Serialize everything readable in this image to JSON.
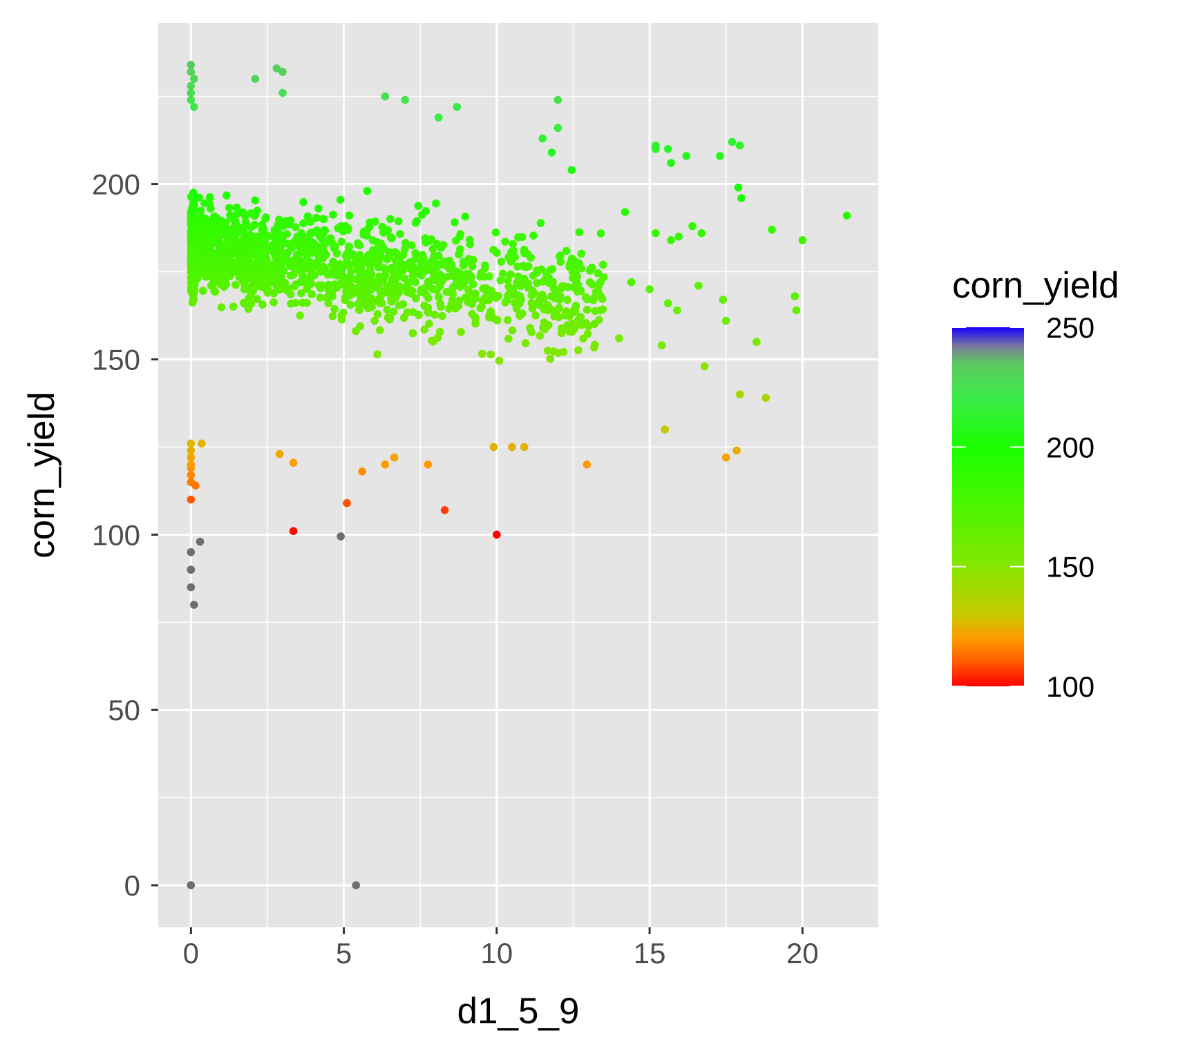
{
  "chart_data": {
    "type": "scatter",
    "title": "",
    "xlabel": "d1_5_9",
    "ylabel": "corn_yield",
    "xlim": [
      -1.07,
      22.5
    ],
    "ylim": [
      -12,
      246
    ],
    "x_ticks": [
      0,
      5,
      10,
      15,
      20
    ],
    "x_minor": [
      2.5,
      7.5,
      12.5,
      17.5,
      22.5
    ],
    "y_ticks": [
      0,
      50,
      100,
      150,
      200
    ],
    "y_minor": [
      25,
      75,
      125,
      175,
      225
    ],
    "grid": true,
    "panel_background": "#e5e5e5",
    "grid_color": "#ffffff",
    "na_color": "#6e6e6e",
    "legend": {
      "title": "corn_yield",
      "position": "right",
      "range": [
        100,
        250
      ],
      "breaks": [
        100,
        150,
        200,
        250
      ],
      "gradient": [
        {
          "value": 100,
          "color": "#ff0000"
        },
        {
          "value": 110,
          "color": "#ff5a00"
        },
        {
          "value": 120,
          "color": "#ff9a00"
        },
        {
          "value": 130,
          "color": "#c8c800"
        },
        {
          "value": 150,
          "color": "#85e600"
        },
        {
          "value": 175,
          "color": "#4cf500"
        },
        {
          "value": 200,
          "color": "#1aff00"
        },
        {
          "value": 220,
          "color": "#3cec48"
        },
        {
          "value": 235,
          "color": "#5cc860"
        },
        {
          "value": 242,
          "color": "#7a7a9a"
        },
        {
          "value": 250,
          "color": "#1a00ff"
        }
      ]
    },
    "points": [
      {
        "x": 0,
        "y": 0
      },
      {
        "x": 5.4,
        "y": 0
      },
      {
        "x": 0.1,
        "y": 80
      },
      {
        "x": 0,
        "y": 85
      },
      {
        "x": 0,
        "y": 90
      },
      {
        "x": 0,
        "y": 95
      },
      {
        "x": 0.3,
        "y": 98
      },
      {
        "x": 3.35,
        "y": 101
      },
      {
        "x": 10,
        "y": 100
      },
      {
        "x": 8.3,
        "y": 107
      },
      {
        "x": 5.1,
        "y": 109
      },
      {
        "x": 0,
        "y": 110
      },
      {
        "x": 0.15,
        "y": 114
      },
      {
        "x": 0,
        "y": 115
      },
      {
        "x": 0,
        "y": 117
      },
      {
        "x": 0,
        "y": 119
      },
      {
        "x": 0,
        "y": 120
      },
      {
        "x": 0,
        "y": 122
      },
      {
        "x": 0,
        "y": 124
      },
      {
        "x": 0,
        "y": 126
      },
      {
        "x": 0.35,
        "y": 126
      },
      {
        "x": 2.9,
        "y": 123
      },
      {
        "x": 3.35,
        "y": 120.5
      },
      {
        "x": 5.6,
        "y": 118
      },
      {
        "x": 6.35,
        "y": 120
      },
      {
        "x": 6.65,
        "y": 122
      },
      {
        "x": 7.75,
        "y": 120
      },
      {
        "x": 9.9,
        "y": 125
      },
      {
        "x": 10.5,
        "y": 125
      },
      {
        "x": 10.9,
        "y": 125
      },
      {
        "x": 12.95,
        "y": 120
      },
      {
        "x": 17.5,
        "y": 122
      },
      {
        "x": 17.85,
        "y": 124
      },
      {
        "x": 15.5,
        "y": 130
      },
      {
        "x": 18.8,
        "y": 139
      },
      {
        "x": 17.95,
        "y": 140
      },
      {
        "x": 16.8,
        "y": 148
      },
      {
        "x": 18.5,
        "y": 155
      },
      {
        "x": 15.4,
        "y": 154
      },
      {
        "x": 14.0,
        "y": 156
      },
      {
        "x": 19.8,
        "y": 164
      },
      {
        "x": 19.75,
        "y": 168
      },
      {
        "x": 17.5,
        "y": 161
      },
      {
        "x": 17.4,
        "y": 167
      },
      {
        "x": 16.6,
        "y": 171
      },
      {
        "x": 15.9,
        "y": 164
      },
      {
        "x": 15.6,
        "y": 166
      },
      {
        "x": 15.0,
        "y": 170
      },
      {
        "x": 14.4,
        "y": 172
      },
      {
        "x": 21.45,
        "y": 191
      },
      {
        "x": 20.0,
        "y": 184
      },
      {
        "x": 19.0,
        "y": 187
      },
      {
        "x": 17.9,
        "y": 199
      },
      {
        "x": 18.0,
        "y": 196
      },
      {
        "x": 17.7,
        "y": 212
      },
      {
        "x": 17.95,
        "y": 211
      },
      {
        "x": 17.3,
        "y": 208
      },
      {
        "x": 16.2,
        "y": 208
      },
      {
        "x": 15.7,
        "y": 206
      },
      {
        "x": 15.2,
        "y": 211
      },
      {
        "x": 15.2,
        "y": 210
      },
      {
        "x": 15.6,
        "y": 210
      },
      {
        "x": 16.7,
        "y": 186
      },
      {
        "x": 16.4,
        "y": 188
      },
      {
        "x": 15.7,
        "y": 184
      },
      {
        "x": 15.95,
        "y": 185
      },
      {
        "x": 15.2,
        "y": 186
      },
      {
        "x": 14.2,
        "y": 192
      },
      {
        "x": 12.0,
        "y": 224
      },
      {
        "x": 12.0,
        "y": 216
      },
      {
        "x": 11.5,
        "y": 213
      },
      {
        "x": 11.8,
        "y": 209
      },
      {
        "x": 12.45,
        "y": 204
      },
      {
        "x": 2.1,
        "y": 230
      },
      {
        "x": 2.8,
        "y": 233
      },
      {
        "x": 3.0,
        "y": 232
      },
      {
        "x": 3.0,
        "y": 226
      },
      {
        "x": 6.35,
        "y": 225
      },
      {
        "x": 7.0,
        "y": 224
      },
      {
        "x": 8.7,
        "y": 222
      },
      {
        "x": 8.1,
        "y": 219
      },
      {
        "x": 0,
        "y": 232
      },
      {
        "x": 0,
        "y": 234
      },
      {
        "x": 0,
        "y": 228
      },
      {
        "x": 0.1,
        "y": 230
      },
      {
        "x": 0,
        "y": 226
      },
      {
        "x": 0,
        "y": 224
      },
      {
        "x": 0.1,
        "y": 222
      },
      {
        "x": 4.9,
        "y": 99.5
      }
    ],
    "cloud": {
      "count": 1750,
      "seed": 7,
      "x_range": [
        0,
        13.5
      ],
      "y_range": [
        128,
        222
      ],
      "note_x_dense_at": 0
    }
  }
}
